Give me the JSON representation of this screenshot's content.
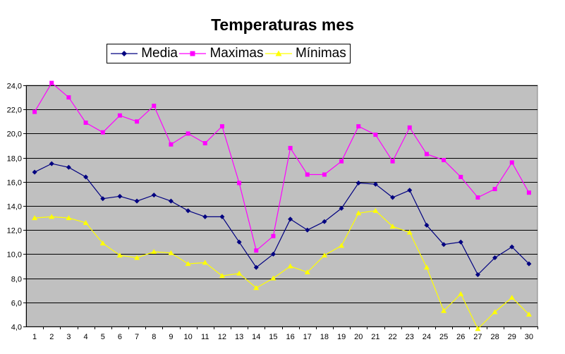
{
  "chart_data": {
    "type": "line",
    "title": "Temperaturas mes",
    "xlabel": "",
    "ylabel": "",
    "categories": [
      "1",
      "2",
      "3",
      "4",
      "5",
      "6",
      "7",
      "8",
      "9",
      "10",
      "11",
      "12",
      "13",
      "14",
      "15",
      "16",
      "17",
      "18",
      "19",
      "20",
      "21",
      "22",
      "23",
      "24",
      "25",
      "26",
      "27",
      "28",
      "29",
      "30"
    ],
    "ylim": [
      4.0,
      24.0
    ],
    "yticks": [
      "4,0",
      "6,0",
      "8,0",
      "10,0",
      "12,0",
      "14,0",
      "16,0",
      "18,0",
      "20,0",
      "22,0",
      "24,0"
    ],
    "grid": true,
    "legend": "top",
    "plot_background": "#c0c0c0",
    "series": [
      {
        "name": "Media",
        "color": "#000080",
        "marker": "diamond",
        "values": [
          16.8,
          17.5,
          17.2,
          16.4,
          14.6,
          14.8,
          14.4,
          14.9,
          14.4,
          13.6,
          13.1,
          13.1,
          11.0,
          8.9,
          10.0,
          12.9,
          12.0,
          12.7,
          13.8,
          15.9,
          15.8,
          14.7,
          15.3,
          12.4,
          10.8,
          11.0,
          8.3,
          9.7,
          10.6,
          9.2
        ]
      },
      {
        "name": "Maximas",
        "color": "#ff00ff",
        "marker": "square",
        "values": [
          21.8,
          24.2,
          23.0,
          20.9,
          20.1,
          21.5,
          21.0,
          22.3,
          19.1,
          20.0,
          19.2,
          20.6,
          15.9,
          10.3,
          11.5,
          18.8,
          16.6,
          16.6,
          17.7,
          20.6,
          19.9,
          17.7,
          20.5,
          18.3,
          17.8,
          16.4,
          14.7,
          15.4,
          17.6,
          15.1
        ]
      },
      {
        "name": "Mínimas",
        "color": "#ffff00",
        "marker": "triangle",
        "values": [
          13.0,
          13.1,
          13.0,
          12.6,
          10.9,
          9.9,
          9.7,
          10.2,
          10.1,
          9.2,
          9.3,
          8.2,
          8.4,
          7.2,
          8.0,
          9.0,
          8.5,
          9.9,
          10.7,
          13.4,
          13.6,
          12.3,
          11.8,
          8.9,
          5.3,
          6.7,
          3.8,
          5.2,
          6.4,
          5.0
        ]
      }
    ]
  }
}
